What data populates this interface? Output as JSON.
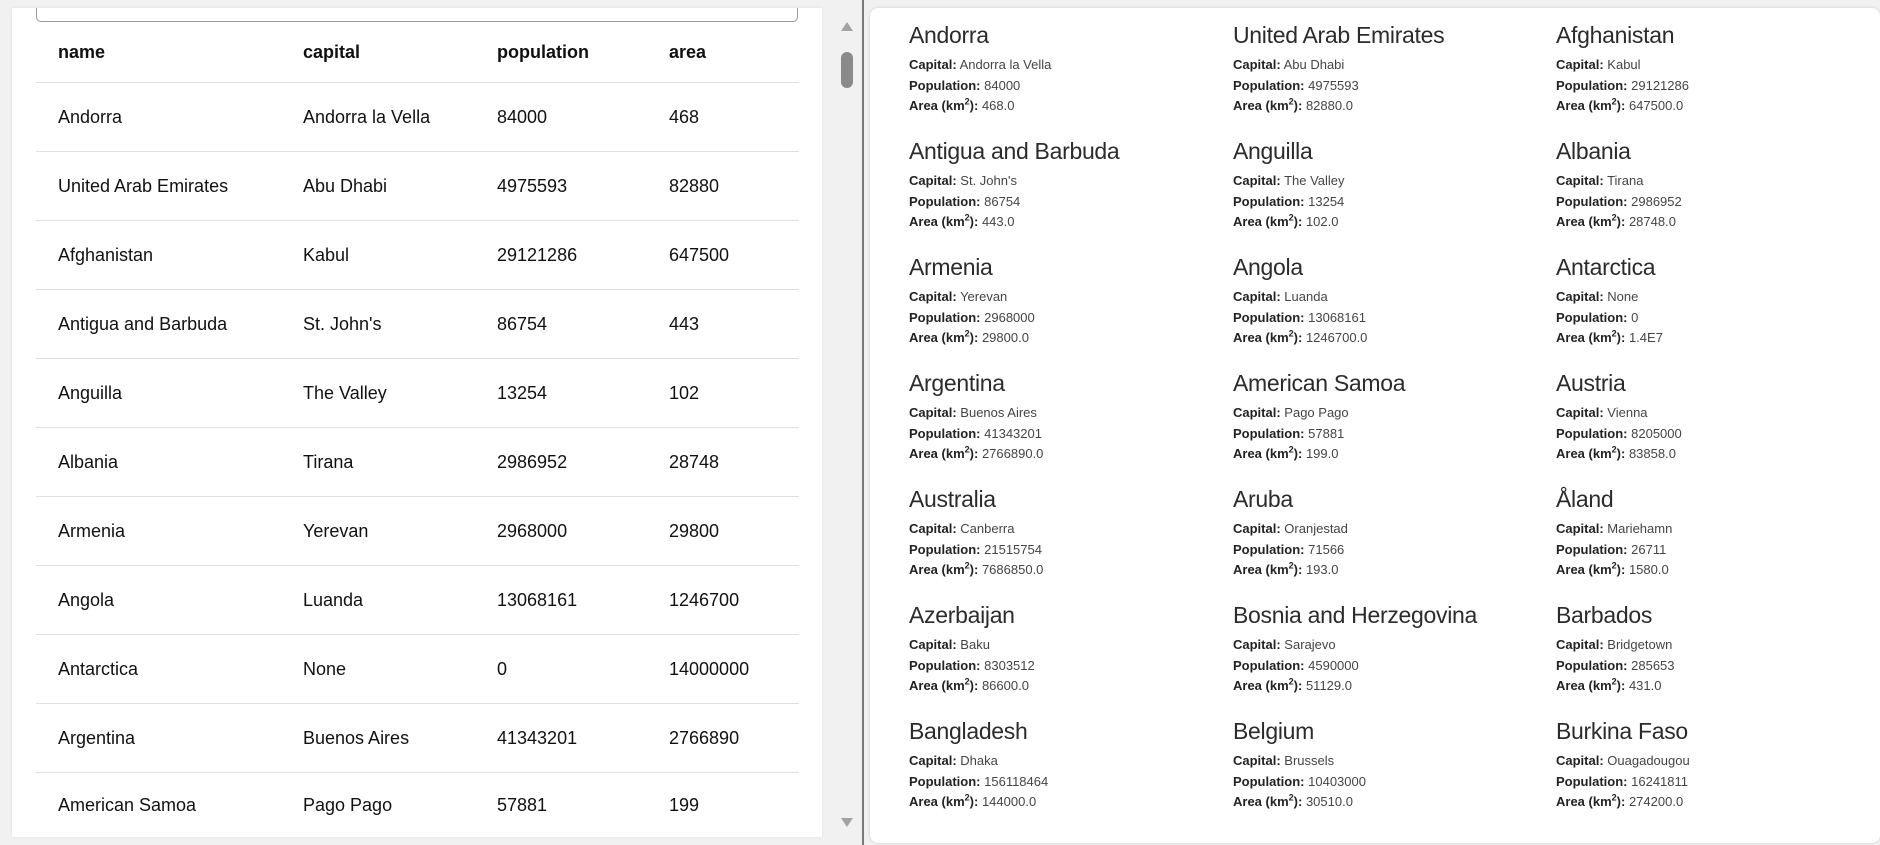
{
  "table": {
    "headers": [
      "name",
      "capital",
      "population",
      "area"
    ],
    "rows": [
      [
        "Andorra",
        "Andorra la Vella",
        "84000",
        "468"
      ],
      [
        "United Arab Emirates",
        "Abu Dhabi",
        "4975593",
        "82880"
      ],
      [
        "Afghanistan",
        "Kabul",
        "29121286",
        "647500"
      ],
      [
        "Antigua and Barbuda",
        "St. John's",
        "86754",
        "443"
      ],
      [
        "Anguilla",
        "The Valley",
        "13254",
        "102"
      ],
      [
        "Albania",
        "Tirana",
        "2986952",
        "28748"
      ],
      [
        "Armenia",
        "Yerevan",
        "2968000",
        "29800"
      ],
      [
        "Angola",
        "Luanda",
        "13068161",
        "1246700"
      ],
      [
        "Antarctica",
        "None",
        "0",
        "14000000"
      ],
      [
        "Argentina",
        "Buenos Aires",
        "41343201",
        "2766890"
      ],
      [
        "American Samoa",
        "Pago Pago",
        "57881",
        "199"
      ]
    ]
  },
  "cards": {
    "labels": {
      "capital": "Capital:",
      "population": "Population:",
      "area_prefix": "Area (km",
      "area_sup": "2",
      "area_suffix": "):"
    },
    "items": [
      {
        "name": "Andorra",
        "capital": "Andorra la Vella",
        "population": "84000",
        "area": "468.0"
      },
      {
        "name": "United Arab Emirates",
        "capital": "Abu Dhabi",
        "population": "4975593",
        "area": "82880.0"
      },
      {
        "name": "Afghanistan",
        "capital": "Kabul",
        "population": "29121286",
        "area": "647500.0"
      },
      {
        "name": "Antigua and Barbuda",
        "capital": "St. John's",
        "population": "86754",
        "area": "443.0"
      },
      {
        "name": "Anguilla",
        "capital": "The Valley",
        "population": "13254",
        "area": "102.0"
      },
      {
        "name": "Albania",
        "capital": "Tirana",
        "population": "2986952",
        "area": "28748.0"
      },
      {
        "name": "Armenia",
        "capital": "Yerevan",
        "population": "2968000",
        "area": "29800.0"
      },
      {
        "name": "Angola",
        "capital": "Luanda",
        "population": "13068161",
        "area": "1246700.0"
      },
      {
        "name": "Antarctica",
        "capital": "None",
        "population": "0",
        "area": "1.4E7"
      },
      {
        "name": "Argentina",
        "capital": "Buenos Aires",
        "population": "41343201",
        "area": "2766890.0"
      },
      {
        "name": "American Samoa",
        "capital": "Pago Pago",
        "population": "57881",
        "area": "199.0"
      },
      {
        "name": "Austria",
        "capital": "Vienna",
        "population": "8205000",
        "area": "83858.0"
      },
      {
        "name": "Australia",
        "capital": "Canberra",
        "population": "21515754",
        "area": "7686850.0"
      },
      {
        "name": "Aruba",
        "capital": "Oranjestad",
        "population": "71566",
        "area": "193.0"
      },
      {
        "name": "Åland",
        "capital": "Mariehamn",
        "population": "26711",
        "area": "1580.0"
      },
      {
        "name": "Azerbaijan",
        "capital": "Baku",
        "population": "8303512",
        "area": "86600.0"
      },
      {
        "name": "Bosnia and Herzegovina",
        "capital": "Sarajevo",
        "population": "4590000",
        "area": "51129.0"
      },
      {
        "name": "Barbados",
        "capital": "Bridgetown",
        "population": "285653",
        "area": "431.0"
      },
      {
        "name": "Bangladesh",
        "capital": "Dhaka",
        "population": "156118464",
        "area": "144000.0"
      },
      {
        "name": "Belgium",
        "capital": "Brussels",
        "population": "10403000",
        "area": "30510.0"
      },
      {
        "name": "Burkina Faso",
        "capital": "Ouagadougou",
        "population": "16241811",
        "area": "274200.0"
      }
    ]
  }
}
